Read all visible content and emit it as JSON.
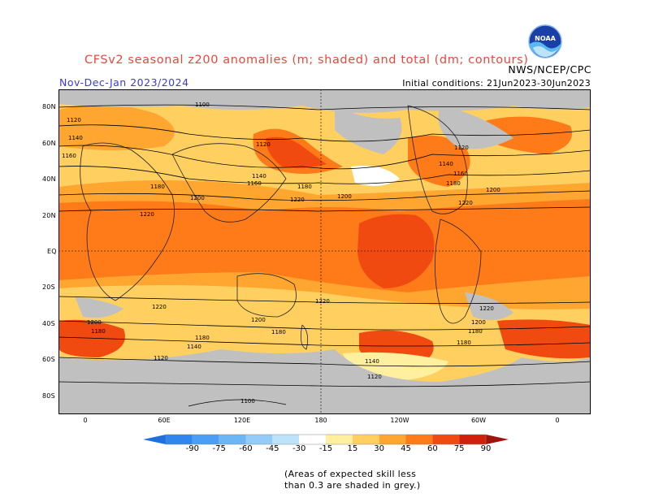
{
  "title": "CFSv2 seasonal z200 anomalies (m; shaded) and total (dm; contours)",
  "agency": "NWS/NCEP/CPC",
  "period": "Nov-Dec-Jan 2023/2024",
  "initial_conditions": "Initial conditions: 21Jun2023-30Jun2023",
  "logo_text": "NOAA",
  "lat_labels": [
    "80N",
    "60N",
    "40N",
    "20N",
    "EQ",
    "20S",
    "40S",
    "60S",
    "80S"
  ],
  "lon_labels": [
    "0",
    "60E",
    "120E",
    "180",
    "120W",
    "60W",
    "0"
  ],
  "colorbar": {
    "labels": [
      "-90",
      "-75",
      "-60",
      "-45",
      "-30",
      "-15",
      "15",
      "30",
      "45",
      "60",
      "75",
      "90"
    ],
    "colors": [
      "#1e6fe0",
      "#2e86ee",
      "#4a9ff4",
      "#6cb6f6",
      "#93ccf8",
      "#bde3fb",
      "#ffffff",
      "#fff0a0",
      "#ffd060",
      "#ffa630",
      "#ff7a18",
      "#f04a10",
      "#d0200c",
      "#a0120a"
    ]
  },
  "note": [
    "(Areas of expected skill less",
    "than 0.3 are shaded in grey.)"
  ],
  "contour_labels": {
    "c1100": "1100",
    "c1120": "1120",
    "c1140": "1140",
    "c1160": "1160",
    "c1180": "1180",
    "c1200": "1200",
    "c1220": "1220"
  },
  "colors": {
    "grey_mask": "#c0c0c0",
    "anomaly_15": "#fff0a0",
    "anomaly_30": "#ffd060",
    "anomaly_45": "#ffa630",
    "anomaly_60": "#ff7a18",
    "anomaly_75": "#f04a10",
    "anomaly_90": "#d0200c"
  }
}
